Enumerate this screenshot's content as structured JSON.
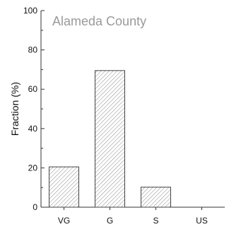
{
  "chart_data": {
    "type": "bar",
    "title": "Alameda County",
    "xlabel": "",
    "ylabel": "Fraction (%)",
    "categories": [
      "VG",
      "G",
      "S",
      "US"
    ],
    "values": [
      20.5,
      69.5,
      10.2,
      0
    ],
    "ylim": [
      0,
      100
    ],
    "yticks": [
      0,
      20,
      40,
      60,
      80,
      100
    ],
    "grid": false,
    "legend": "none",
    "colors": {
      "bar_hatch": "#8a8a8a",
      "bar_edge": "#444444",
      "axis": "#333333",
      "title": "#9a9a9a"
    },
    "hatch": "diagonal"
  }
}
